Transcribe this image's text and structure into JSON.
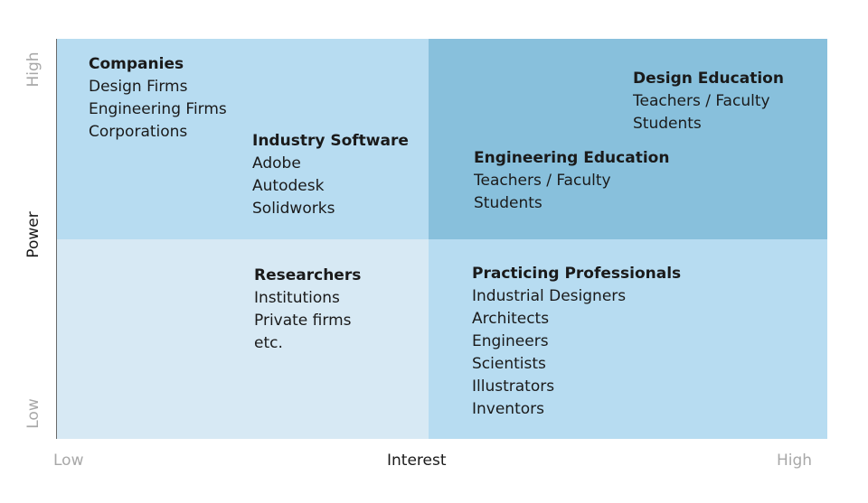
{
  "y_axis": {
    "label": "Power",
    "low": "Low",
    "high": "High"
  },
  "x_axis": {
    "label": "Interest",
    "low": "Low",
    "high": "High"
  },
  "groups": [
    {
      "title": "Companies",
      "items": [
        "Design Firms",
        "Engineering Firms",
        "Corporations"
      ]
    },
    {
      "title": "Industry Software",
      "items": [
        "Adobe",
        "Autodesk",
        "Solidworks"
      ]
    },
    {
      "title": "Design Education",
      "items": [
        "Teachers / Faculty",
        "Students"
      ]
    },
    {
      "title": "Engineering Education",
      "items": [
        "Teachers / Faculty",
        "Students"
      ]
    },
    {
      "title": "Researchers",
      "items": [
        "Institutions",
        "Private firms",
        "etc."
      ]
    },
    {
      "title": "Practicing Professionals",
      "items": [
        "Industrial Designers",
        "Architects",
        "Engineers",
        "Scientists",
        "Illustrators",
        "Inventors"
      ]
    }
  ],
  "colors": {
    "low_power_low_interest": "#d7e9f4",
    "high_power_low_interest": "#b7dcf1",
    "low_power_high_interest": "#b7dcf1",
    "high_power_high_interest": "#88c0dc"
  }
}
